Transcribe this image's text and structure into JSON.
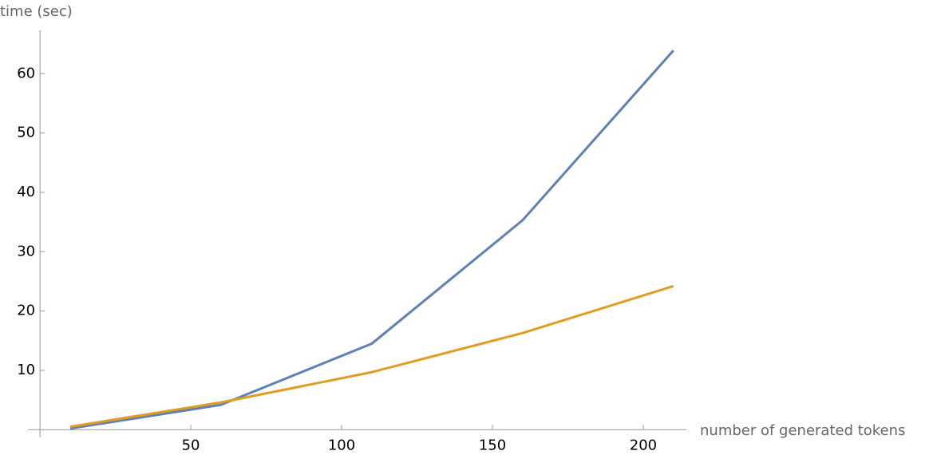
{
  "chart_data": {
    "type": "line",
    "x_label": "number of generated tokens",
    "y_label": "time (sec)",
    "x": [
      10,
      60,
      110,
      160,
      210
    ],
    "series": [
      {
        "color": "#5e81b5",
        "values": [
          0.2,
          4.2,
          14.5,
          35.3,
          63.9
        ]
      },
      {
        "color": "#e19c24",
        "values": [
          0.5,
          4.6,
          9.7,
          16.3,
          24.2
        ]
      }
    ],
    "xlim": [
      -4,
      214.3
    ],
    "ylim": [
      -1.3,
      67.3
    ],
    "xticks": [
      50,
      100,
      150,
      200
    ],
    "yticks": [
      10,
      20,
      30,
      40,
      50,
      60
    ],
    "grid": false
  }
}
